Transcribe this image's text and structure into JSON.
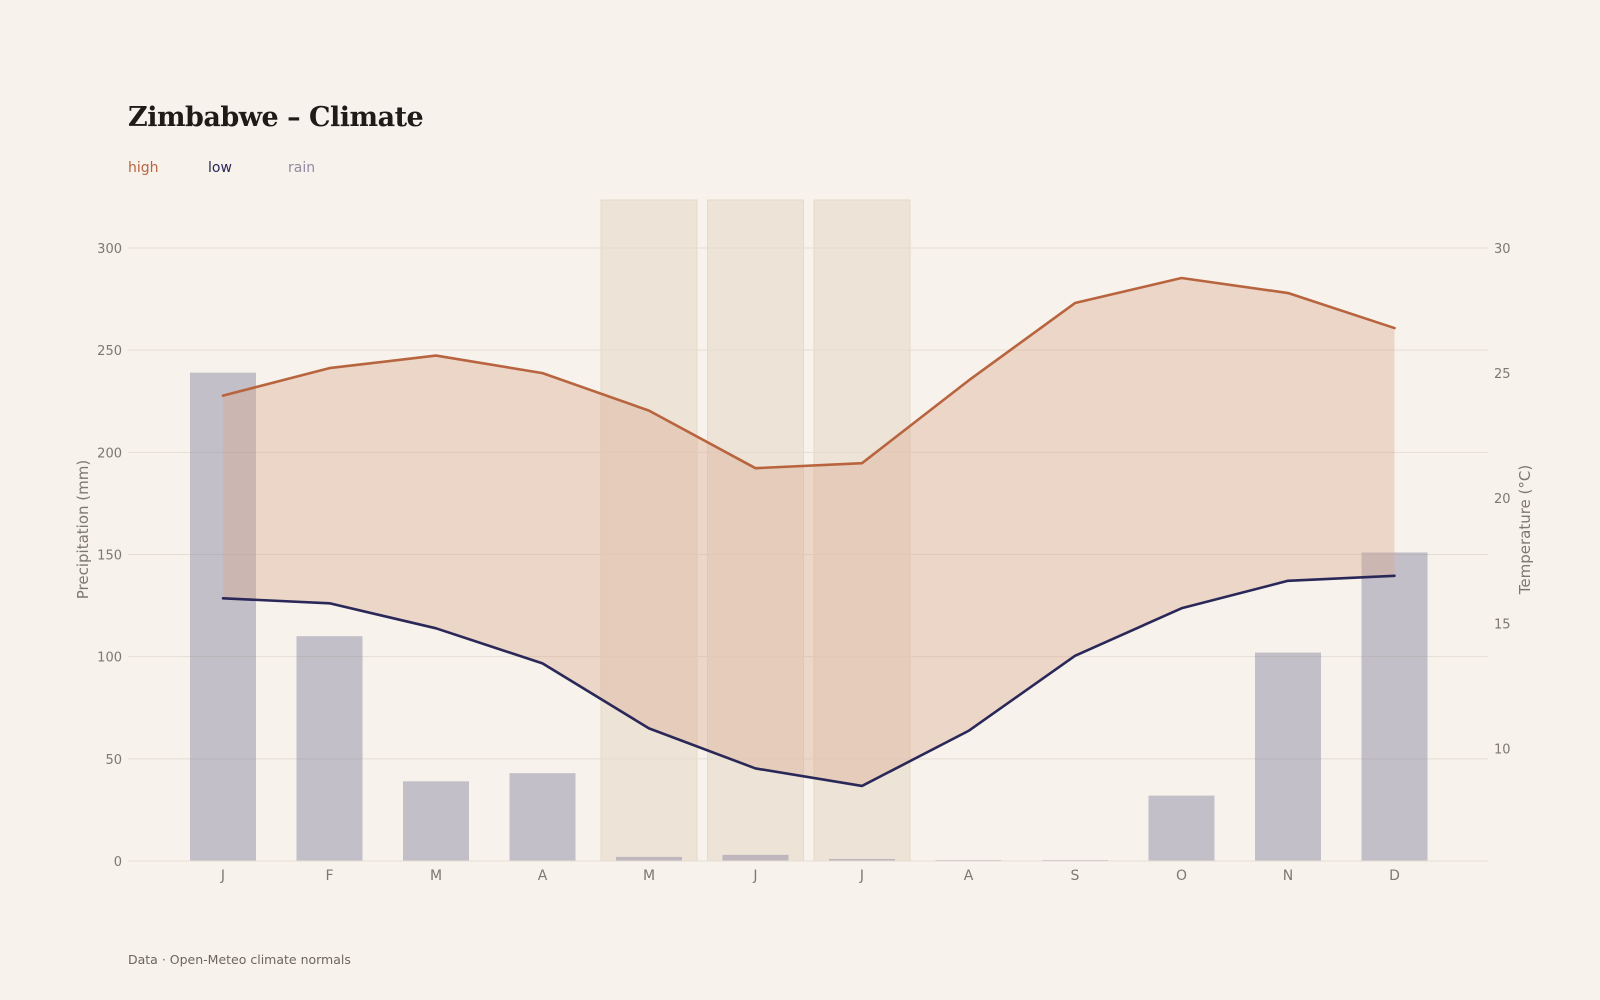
{
  "title": "Zimbabwe – Climate",
  "source": "Data · Open-Meteo climate normals",
  "colors": {
    "high": "#b8653f",
    "low": "#2a2858",
    "rain": "#8f8ba3",
    "band": "#e8d8cd",
    "grid": "#e5ddd3",
    "axis_text": "#7d7870",
    "highlight": "#ede3d6"
  },
  "chart_data": {
    "type": "bar+line",
    "title": "Zimbabwe – Climate",
    "categories": [
      "J",
      "F",
      "M",
      "A",
      "M",
      "J",
      "J",
      "A",
      "S",
      "O",
      "N",
      "D"
    ],
    "series": [
      {
        "name": "rain",
        "type": "bar",
        "axis": "left",
        "values": [
          239,
          110,
          39,
          43,
          2,
          3,
          1,
          0.5,
          0.5,
          32,
          102,
          151
        ]
      },
      {
        "name": "high",
        "type": "line",
        "axis": "right",
        "values": [
          24.1,
          25.2,
          25.7,
          25.0,
          23.5,
          21.2,
          21.4,
          24.7,
          27.8,
          28.8,
          28.2,
          26.8
        ]
      },
      {
        "name": "low",
        "type": "line",
        "axis": "right",
        "values": [
          16.0,
          15.8,
          14.8,
          13.4,
          10.8,
          9.2,
          8.5,
          10.7,
          13.7,
          15.6,
          16.7,
          16.9
        ]
      }
    ],
    "highlight_months": [
      4,
      5,
      6
    ],
    "y_left": {
      "label": "Precipitation (mm)",
      "min": 0,
      "max": 300,
      "ticks": [
        0,
        50,
        100,
        150,
        200,
        250,
        300
      ]
    },
    "y_right": {
      "label": "Temperature (°C)",
      "min": 5.5,
      "max": 30,
      "ticks": [
        10,
        15,
        20,
        25,
        30
      ]
    },
    "legend": {
      "placement": "top-left",
      "items": [
        "high",
        "low",
        "rain"
      ]
    },
    "grid": true
  }
}
